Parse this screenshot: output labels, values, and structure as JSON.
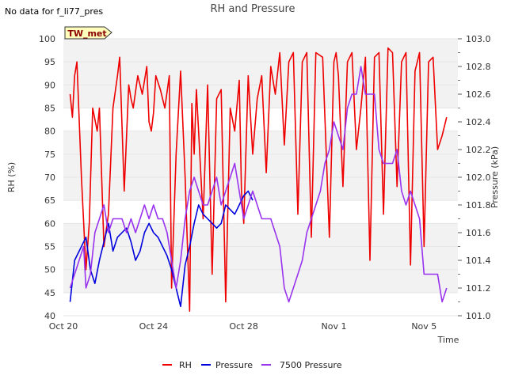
{
  "chart_data": {
    "type": "line",
    "title": "RH and Pressure",
    "note": "No data for f_li77_pres",
    "badge": "TW_met",
    "xlabel": "Time",
    "ylabel_left": "RH (%)",
    "ylabel_right": "Pressure (kPa)",
    "x_range_days": [
      0,
      17.5
    ],
    "x_ticks": [
      {
        "day": 0,
        "label": "Oct 20"
      },
      {
        "day": 4,
        "label": "Oct 24"
      },
      {
        "day": 8,
        "label": "Oct 28"
      },
      {
        "day": 12,
        "label": "Nov 1"
      },
      {
        "day": 16,
        "label": "Nov 5"
      }
    ],
    "ylim_left": [
      40,
      100
    ],
    "yticks_left": [
      40,
      45,
      50,
      55,
      60,
      65,
      70,
      75,
      80,
      85,
      90,
      95,
      100
    ],
    "ylim_right": [
      101.0,
      103.0
    ],
    "yticks_right": [
      "101.0",
      "101.2",
      "101.4",
      "101.6",
      "101.8",
      "102.0",
      "102.2",
      "102.4",
      "102.6",
      "102.8",
      "103.0"
    ],
    "grid": "horizontal alternating bands",
    "legend_position": "bottom",
    "series": [
      {
        "name": "RH",
        "color": "#ee0000",
        "axis": "left",
        "x": [
          0.3,
          0.4,
          0.5,
          0.6,
          0.8,
          1.0,
          1.15,
          1.3,
          1.5,
          1.6,
          1.8,
          2.0,
          2.2,
          2.4,
          2.5,
          2.7,
          2.9,
          3.0,
          3.1,
          3.3,
          3.5,
          3.7,
          3.8,
          3.9,
          4.0,
          4.1,
          4.3,
          4.5,
          4.7,
          4.8,
          5.0,
          5.2,
          5.4,
          5.6,
          5.7,
          5.8,
          5.9,
          6.0,
          6.2,
          6.4,
          6.6,
          6.8,
          7.0,
          7.2,
          7.4,
          7.6,
          7.8,
          7.9,
          8.0,
          8.2,
          8.4,
          8.6,
          8.8,
          9.0,
          9.2,
          9.4,
          9.6,
          9.8,
          10.0,
          10.2,
          10.4,
          10.6,
          10.8,
          11.0,
          11.2,
          11.5,
          11.8,
          12.0,
          12.1,
          12.2,
          12.4,
          12.6,
          12.8,
          13.0,
          13.2,
          13.4,
          13.6,
          13.8,
          14.0,
          14.2,
          14.4,
          14.6,
          14.8,
          15.0,
          15.2,
          15.4,
          15.6,
          15.8,
          16.0,
          16.2,
          16.4,
          16.6,
          16.8,
          17.0
        ],
        "y": [
          88,
          83,
          92,
          95,
          70,
          50,
          60,
          85,
          80,
          85,
          55,
          62,
          85,
          92,
          96,
          67,
          90,
          87,
          85,
          92,
          88,
          94,
          82,
          80,
          84,
          92,
          89,
          85,
          92,
          46,
          75,
          93,
          70,
          41,
          86,
          75,
          89,
          80,
          61,
          90,
          49,
          87,
          89,
          43,
          85,
          80,
          91,
          67,
          60,
          92,
          75,
          87,
          92,
          71,
          94,
          88,
          97,
          77,
          95,
          97,
          62,
          95,
          97,
          57,
          97,
          96,
          57,
          95,
          97,
          92,
          68,
          95,
          97,
          76,
          85,
          96,
          52,
          96,
          97,
          62,
          98,
          97,
          68,
          95,
          97,
          51,
          93,
          97,
          55,
          95,
          96,
          76,
          79,
          83
        ]
      },
      {
        "name": "Pressure",
        "color": "#0000dd",
        "axis": "left",
        "x": [
          0.3,
          0.5,
          0.8,
          1.0,
          1.2,
          1.4,
          1.6,
          1.8,
          2.0,
          2.2,
          2.4,
          2.6,
          2.8,
          3.0,
          3.2,
          3.4,
          3.6,
          3.8,
          4.0,
          4.2,
          4.4,
          4.6,
          4.8,
          5.0,
          5.2,
          5.4,
          5.6,
          5.8,
          6.0,
          6.2,
          6.4,
          6.6,
          6.8,
          7.0,
          7.2,
          7.4,
          7.6,
          7.8,
          8.0,
          8.2,
          8.4
        ],
        "y": [
          43,
          52,
          55,
          57,
          50,
          47,
          52,
          56,
          60,
          54,
          57,
          58,
          59,
          56,
          52,
          54,
          58,
          60,
          58,
          57,
          55,
          53,
          50,
          46,
          42,
          51,
          55,
          60,
          64,
          62,
          61,
          60,
          59,
          60,
          64,
          63,
          62,
          64,
          66,
          67,
          65
        ]
      },
      {
        "name": "7500 Pressure",
        "color": "#9933ee",
        "axis": "left",
        "x": [
          0.3,
          0.5,
          0.7,
          0.9,
          1.0,
          1.2,
          1.4,
          1.6,
          1.8,
          2.0,
          2.2,
          2.4,
          2.6,
          2.8,
          3.0,
          3.2,
          3.4,
          3.6,
          3.8,
          4.0,
          4.2,
          4.4,
          4.6,
          4.8,
          5.0,
          5.2,
          5.4,
          5.6,
          5.8,
          6.0,
          6.2,
          6.4,
          6.6,
          6.8,
          7.0,
          7.2,
          7.4,
          7.6,
          7.8,
          8.0,
          8.2,
          8.4,
          8.6,
          8.8,
          9.0,
          9.2,
          9.4,
          9.6,
          9.8,
          10.0,
          10.2,
          10.4,
          10.6,
          10.8,
          11.0,
          11.2,
          11.4,
          11.6,
          11.8,
          12.0,
          12.2,
          12.4,
          12.6,
          12.8,
          13.0,
          13.2,
          13.4,
          13.6,
          13.8,
          14.0,
          14.2,
          14.4,
          14.6,
          14.8,
          15.0,
          15.2,
          15.4,
          15.6,
          15.8,
          16.0,
          16.2,
          16.4,
          16.6,
          16.8,
          17.0
        ],
        "y": [
          46,
          49,
          52,
          55,
          46,
          49,
          58,
          61,
          64,
          58,
          61,
          61,
          61,
          58,
          61,
          58,
          61,
          64,
          61,
          64,
          61,
          61,
          58,
          52,
          46,
          52,
          61,
          67,
          70,
          67,
          64,
          64,
          67,
          70,
          64,
          67,
          70,
          73,
          67,
          61,
          64,
          67,
          64,
          61,
          61,
          61,
          58,
          55,
          46,
          43,
          46,
          49,
          52,
          58,
          61,
          64,
          67,
          73,
          76,
          82,
          79,
          76,
          85,
          88,
          88,
          94,
          88,
          88,
          88,
          76,
          73,
          73,
          73,
          76,
          67,
          64,
          67,
          64,
          61,
          49,
          49,
          49,
          49,
          43,
          46
        ]
      }
    ]
  }
}
